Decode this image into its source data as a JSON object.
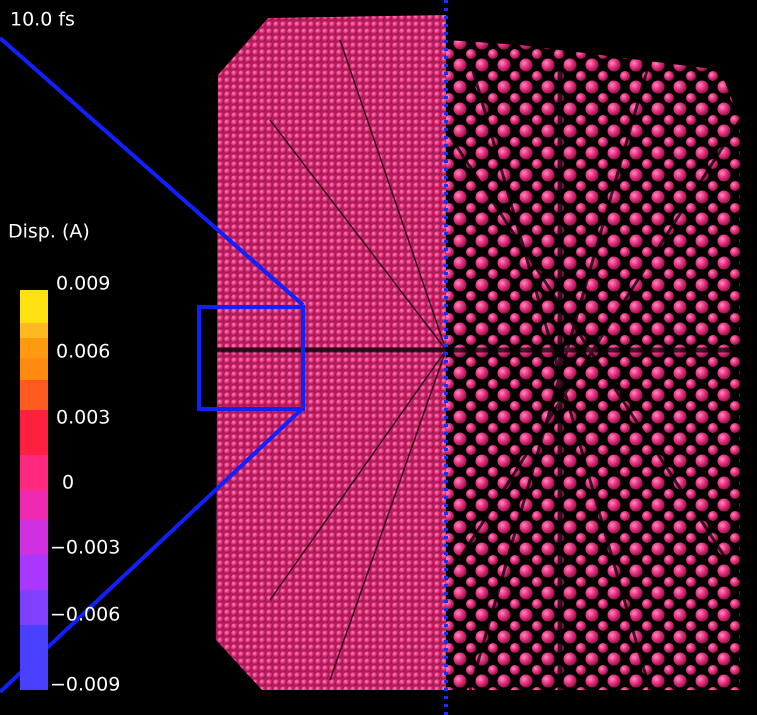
{
  "time_label": "10.0 fs",
  "legend": {
    "title": "Disp. (A)",
    "tick_labels": [
      "0.009",
      "0.006",
      "0.003",
      "0",
      "−0.003",
      "−0.006",
      "−0.009"
    ]
  }
}
